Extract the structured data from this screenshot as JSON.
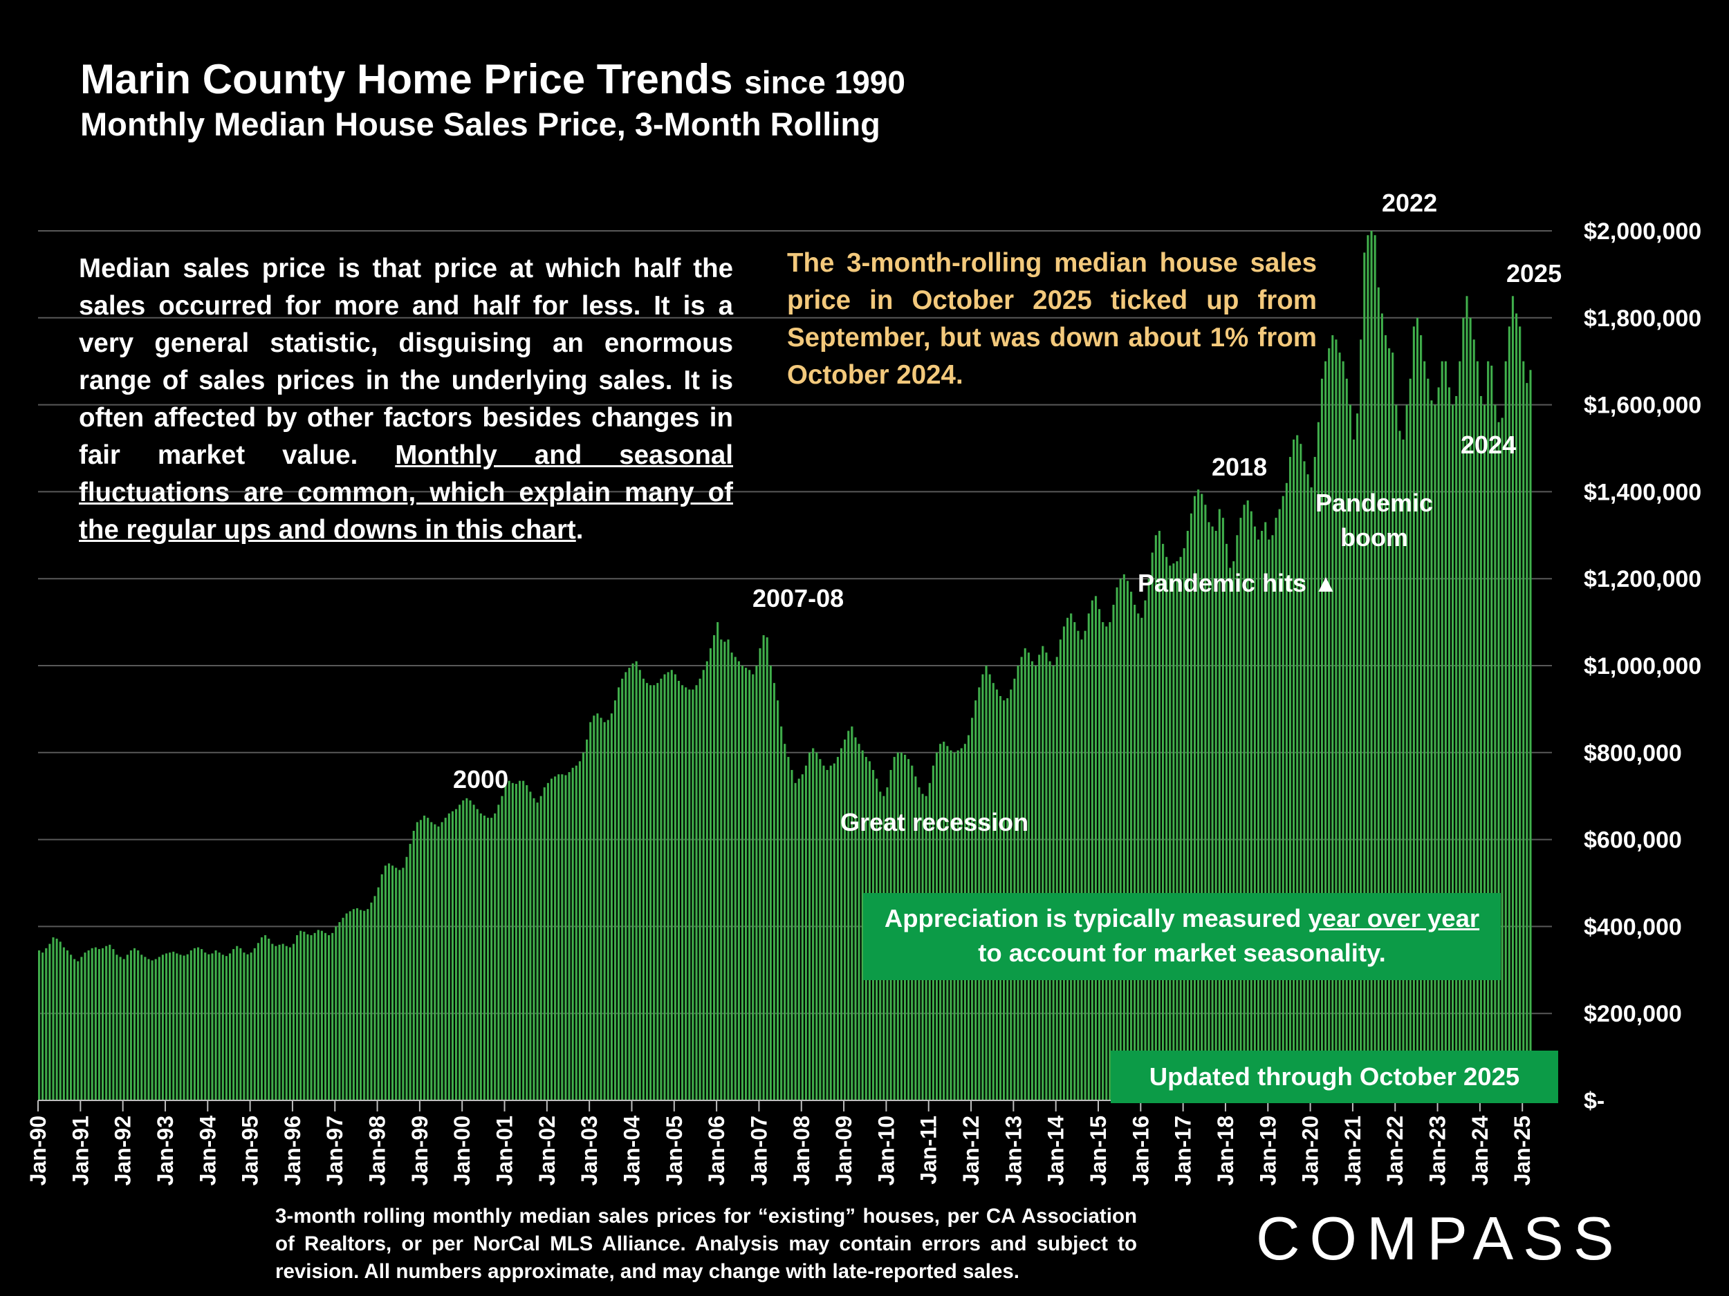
{
  "title": {
    "main": "Marin County Home Price Trends",
    "suffix": "since 1990",
    "subtitle": "Monthly Median House Sales Price, 3-Month Rolling"
  },
  "explain": {
    "part1": "Median sales price is that price at which half the sales occurred for more and half for less. It is a very general statistic, disguising an enormous range of sales prices in the underlying sales. It is often affected by other factors besides changes in fair market value. ",
    "underlined": "Monthly and seasonal fluctuations are common, which explain many of the regular ups and downs in this chart",
    "part2": "."
  },
  "callout": "The 3-month-rolling median house sales price in October 2025 ticked up from September, but was down about 1% from October 2024.",
  "box1": {
    "part1": "Appreciation is typically measured ",
    "underlined": "year over year",
    "part2": "to account for market seasonality."
  },
  "box2": "Updated through October 2025",
  "footnote": "3-month rolling monthly median sales prices for “existing” houses, per CA Association of Realtors, or per NorCal MLS Alliance. Analysis may contain errors and subject to revision. All numbers approximate, and may change with late-reported sales.",
  "logo_text": "COMPASS",
  "colors": {
    "bar": "#2f9e3f",
    "bar_highlight": "#6fcf6a",
    "callout": "#f3c97c",
    "box": "#0c9b47",
    "grid": "#595959"
  },
  "chart_data": {
    "type": "bar",
    "x_start": "Jan-90",
    "frequency": "monthly",
    "ylim": [
      0,
      2000000
    ],
    "yticks": [
      0,
      200000,
      400000,
      600000,
      800000,
      1000000,
      1200000,
      1400000,
      1600000,
      1800000,
      2000000
    ],
    "ytick_labels": [
      "$-",
      "$200,000",
      "$400,000",
      "$600,000",
      "$800,000",
      "$1,000,000",
      "$1,200,000",
      "$1,400,000",
      "$1,600,000",
      "$1,800,000",
      "$2,000,000"
    ],
    "grid": true,
    "xtick_labels": [
      "Jan-90",
      "Jan-91",
      "Jan-92",
      "Jan-93",
      "Jan-94",
      "Jan-95",
      "Jan-96",
      "Jan-97",
      "Jan-98",
      "Jan-99",
      "Jan-00",
      "Jan-01",
      "Jan-02",
      "Jan-03",
      "Jan-04",
      "Jan-05",
      "Jan-06",
      "Jan-07",
      "Jan-08",
      "Jan-09",
      "Jan-10",
      "Jan-11",
      "Jan-12",
      "Jan-13",
      "Jan-14",
      "Jan-15",
      "Jan-16",
      "Jan-17",
      "Jan-18",
      "Jan-19",
      "Jan-20",
      "Jan-21",
      "Jan-22",
      "Jan-23",
      "Jan-24",
      "Jan-25"
    ],
    "values": [
      345000,
      340000,
      350000,
      360000,
      375000,
      372000,
      365000,
      352000,
      345000,
      335000,
      325000,
      320000,
      330000,
      340000,
      345000,
      350000,
      352000,
      348000,
      350000,
      355000,
      358000,
      348000,
      335000,
      330000,
      325000,
      335000,
      345000,
      350000,
      345000,
      335000,
      330000,
      325000,
      322000,
      325000,
      330000,
      335000,
      338000,
      340000,
      342000,
      338000,
      335000,
      333000,
      336000,
      345000,
      350000,
      352000,
      348000,
      340000,
      336000,
      338000,
      345000,
      340000,
      335000,
      332000,
      338000,
      348000,
      355000,
      350000,
      340000,
      336000,
      340000,
      350000,
      362000,
      375000,
      380000,
      372000,
      360000,
      355000,
      358000,
      360000,
      355000,
      352000,
      360000,
      380000,
      390000,
      388000,
      382000,
      380000,
      385000,
      392000,
      390000,
      385000,
      380000,
      385000,
      400000,
      410000,
      420000,
      430000,
      435000,
      440000,
      442000,
      438000,
      436000,
      440000,
      455000,
      470000,
      490000,
      520000,
      540000,
      545000,
      540000,
      535000,
      530000,
      535000,
      560000,
      590000,
      620000,
      640000,
      645000,
      655000,
      650000,
      640000,
      635000,
      630000,
      640000,
      650000,
      660000,
      665000,
      670000,
      680000,
      690000,
      695000,
      690000,
      680000,
      670000,
      660000,
      655000,
      650000,
      650000,
      660000,
      680000,
      700000,
      730000,
      735000,
      730000,
      728000,
      735000,
      735000,
      725000,
      710000,
      695000,
      685000,
      700000,
      720000,
      730000,
      740000,
      745000,
      750000,
      750000,
      748000,
      755000,
      765000,
      770000,
      780000,
      800000,
      830000,
      870000,
      885000,
      890000,
      880000,
      870000,
      875000,
      890000,
      920000,
      950000,
      970000,
      985000,
      995000,
      1005000,
      1010000,
      990000,
      970000,
      960000,
      955000,
      955000,
      960000,
      970000,
      980000,
      985000,
      990000,
      980000,
      965000,
      955000,
      950000,
      945000,
      945000,
      955000,
      970000,
      990000,
      1010000,
      1040000,
      1070000,
      1100000,
      1060000,
      1055000,
      1060000,
      1030000,
      1020000,
      1010000,
      1000000,
      995000,
      990000,
      980000,
      1000000,
      1040000,
      1070000,
      1065000,
      1000000,
      960000,
      920000,
      860000,
      820000,
      790000,
      760000,
      730000,
      740000,
      750000,
      770000,
      800000,
      810000,
      800000,
      785000,
      770000,
      760000,
      770000,
      775000,
      790000,
      810000,
      830000,
      850000,
      860000,
      835000,
      820000,
      805000,
      790000,
      780000,
      760000,
      740000,
      710000,
      700000,
      720000,
      760000,
      790000,
      800000,
      800000,
      795000,
      785000,
      770000,
      745000,
      720000,
      705000,
      700000,
      730000,
      770000,
      800000,
      820000,
      825000,
      815000,
      805000,
      800000,
      805000,
      810000,
      820000,
      840000,
      880000,
      920000,
      950000,
      980000,
      1000000,
      980000,
      960000,
      945000,
      930000,
      920000,
      925000,
      945000,
      970000,
      1000000,
      1020000,
      1040000,
      1030000,
      1010000,
      1000000,
      1025000,
      1045000,
      1030000,
      1010000,
      1000000,
      1020000,
      1060000,
      1090000,
      1110000,
      1120000,
      1100000,
      1080000,
      1060000,
      1080000,
      1120000,
      1150000,
      1160000,
      1130000,
      1100000,
      1090000,
      1100000,
      1140000,
      1180000,
      1200000,
      1210000,
      1195000,
      1170000,
      1140000,
      1120000,
      1110000,
      1150000,
      1200000,
      1260000,
      1300000,
      1310000,
      1280000,
      1250000,
      1230000,
      1235000,
      1240000,
      1250000,
      1270000,
      1310000,
      1350000,
      1390000,
      1405000,
      1395000,
      1370000,
      1330000,
      1320000,
      1310000,
      1360000,
      1340000,
      1280000,
      1225000,
      1240000,
      1300000,
      1340000,
      1370000,
      1380000,
      1355000,
      1320000,
      1290000,
      1310000,
      1330000,
      1290000,
      1300000,
      1340000,
      1360000,
      1390000,
      1420000,
      1480000,
      1520000,
      1530000,
      1510000,
      1470000,
      1440000,
      1410000,
      1480000,
      1560000,
      1660000,
      1700000,
      1730000,
      1760000,
      1750000,
      1720000,
      1700000,
      1660000,
      1600000,
      1520000,
      1580000,
      1750000,
      1950000,
      1990000,
      2000000,
      1990000,
      1870000,
      1810000,
      1760000,
      1730000,
      1720000,
      1600000,
      1540000,
      1520000,
      1600000,
      1660000,
      1780000,
      1800000,
      1760000,
      1700000,
      1660000,
      1610000,
      1600000,
      1640000,
      1700000,
      1700000,
      1640000,
      1600000,
      1620000,
      1700000,
      1800000,
      1850000,
      1800000,
      1750000,
      1700000,
      1620000,
      1600000,
      1700000,
      1690000,
      1600000,
      1560000,
      1570000,
      1700000,
      1780000,
      1850000,
      1810000,
      1780000,
      1700000,
      1650000,
      1680000
    ],
    "annotations": [
      {
        "text": "2000"
      },
      {
        "text": "2007-08"
      },
      {
        "text": "Great recession"
      },
      {
        "text": "2018"
      },
      {
        "text": "Pandemic hits ▲"
      },
      {
        "text": "Pandemic"
      },
      {
        "text": "boom"
      },
      {
        "text": "2022"
      },
      {
        "text": "2025"
      },
      {
        "text": "2024"
      }
    ]
  }
}
